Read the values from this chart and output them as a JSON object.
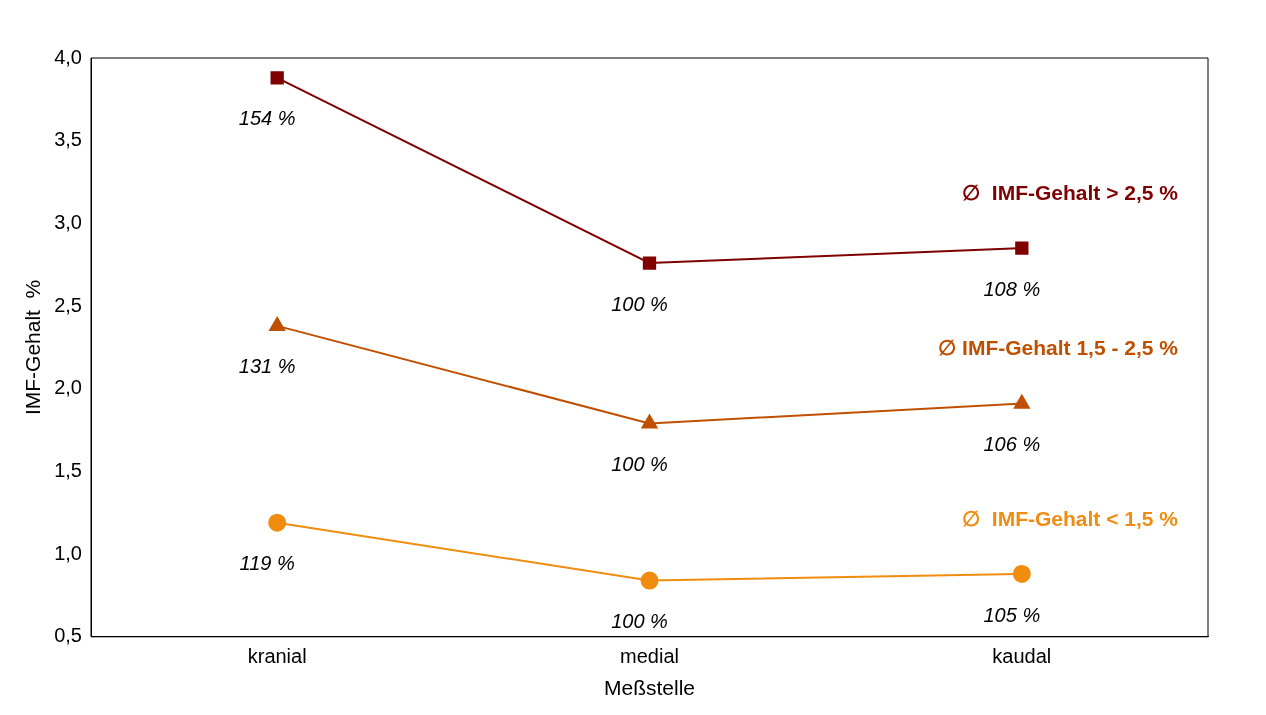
{
  "chart_data": {
    "type": "line",
    "xlabel": "Meßstelle",
    "ylabel": "IMF-Gehalt  %",
    "categories": [
      "kranial",
      "medial",
      "kaudal"
    ],
    "ylim": [
      0.5,
      4.0
    ],
    "yticks": [
      {
        "value": 0.5,
        "label": "0,5"
      },
      {
        "value": 1.0,
        "label": "1,0"
      },
      {
        "value": 1.5,
        "label": "1,5"
      },
      {
        "value": 2.0,
        "label": "2,0"
      },
      {
        "value": 2.5,
        "label": "2,5"
      },
      {
        "value": 3.0,
        "label": "3,0"
      },
      {
        "value": 3.5,
        "label": "3,5"
      },
      {
        "value": 4.0,
        "label": "4,0"
      }
    ],
    "grid": false,
    "legend": false,
    "annotations": [
      {
        "text": "154 %",
        "x": "kranial",
        "y": 3.88
      },
      {
        "text": "100 %",
        "x": "medial",
        "y": 2.76
      },
      {
        "text": "108 %",
        "x": "kaudal",
        "y": 2.85
      },
      {
        "text": "131 %",
        "x": "kranial",
        "y": 2.38
      },
      {
        "text": "100 %",
        "x": "medial",
        "y": 1.79
      },
      {
        "text": "106 %",
        "x": "kaudal",
        "y": 1.91
      },
      {
        "text": "119 %",
        "x": "kranial",
        "y": 1.19
      },
      {
        "text": "100 %",
        "x": "medial",
        "y": 0.84
      },
      {
        "text": "105 %",
        "x": "kaudal",
        "y": 0.88
      }
    ],
    "series": [
      {
        "name": "∅  IMF-Gehalt > 2,5 %",
        "color": "#800000",
        "marker": "square",
        "values": [
          3.88,
          2.76,
          2.85
        ]
      },
      {
        "name": "∅ IMF-Gehalt 1,5 - 2,5 %",
        "color": "#c05000",
        "marker": "triangle",
        "values": [
          2.38,
          1.79,
          1.91
        ]
      },
      {
        "name": "∅  IMF-Gehalt < 1,5 %",
        "color": "#f08c10",
        "marker": "circle",
        "values": [
          1.19,
          0.84,
          0.88
        ]
      }
    ]
  }
}
